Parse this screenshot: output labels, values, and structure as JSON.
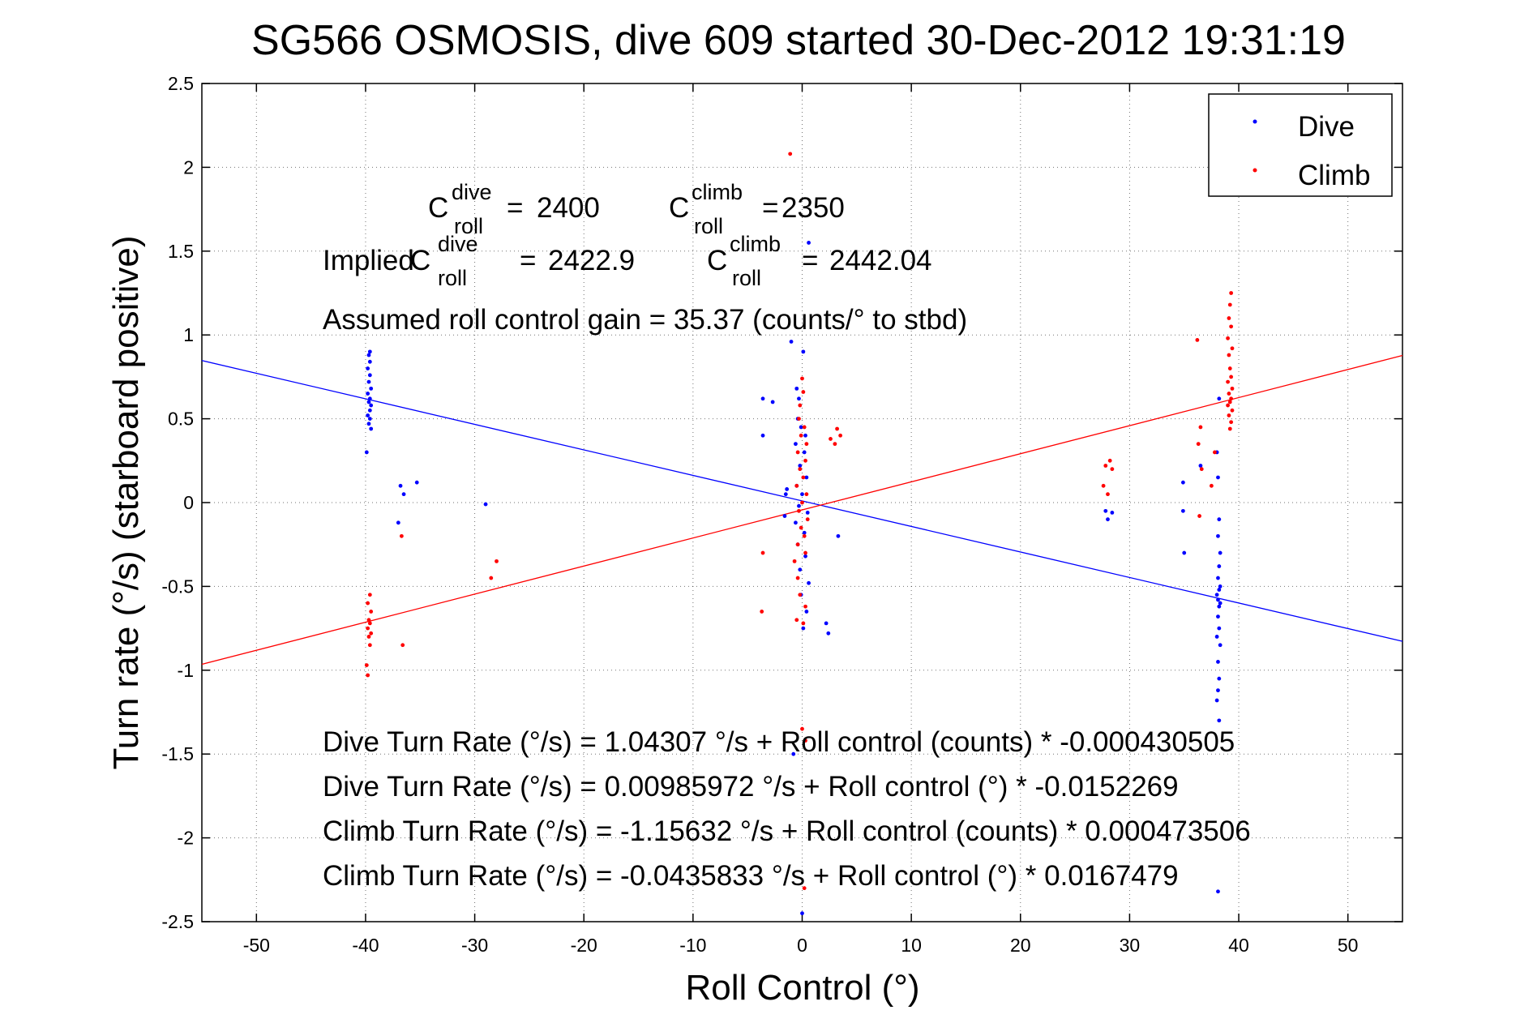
{
  "chart_data": {
    "type": "scatter",
    "title": "SG566 OSMOSIS, dive 609 started 30-Dec-2012 19:31:19",
    "xlabel": "Roll Control (°)",
    "ylabel": "Turn rate (°/s) (starboard positive)",
    "xlim": [
      -55,
      55
    ],
    "ylim": [
      -2.5,
      2.5
    ],
    "xticks": [
      -50,
      -40,
      -30,
      -20,
      -10,
      0,
      10,
      20,
      30,
      40,
      50
    ],
    "yticks": [
      2.5,
      2,
      1.5,
      1,
      0.5,
      0,
      -0.5,
      -1,
      -1.5,
      -2,
      -2.5
    ],
    "xtick_labels": [
      "-50",
      "-40",
      "-30",
      "-20",
      "-10",
      "0",
      "10",
      "20",
      "30",
      "40",
      "50"
    ],
    "ytick_labels": [
      "2.5",
      "2",
      "1.5",
      "1",
      "0.5",
      "0",
      "-0.5",
      "-1",
      "-1.5",
      "-2",
      "-2.5"
    ],
    "grid": true,
    "legend": {
      "placement": "top-right"
    },
    "series": [
      {
        "name": "Dive",
        "color": "#0000ff",
        "fit_intercept": 0.00985972,
        "fit_slope": -0.0152269,
        "points": [
          [
            -39.6,
            0.9
          ],
          [
            -39.7,
            0.88
          ],
          [
            -39.6,
            0.84
          ],
          [
            -39.8,
            0.8
          ],
          [
            -39.6,
            0.76
          ],
          [
            -39.7,
            0.72
          ],
          [
            -39.5,
            0.68
          ],
          [
            -39.8,
            0.65
          ],
          [
            -39.6,
            0.62
          ],
          [
            -39.7,
            0.6
          ],
          [
            -39.5,
            0.58
          ],
          [
            -39.6,
            0.55
          ],
          [
            -39.8,
            0.52
          ],
          [
            -39.6,
            0.5
          ],
          [
            -39.7,
            0.47
          ],
          [
            -39.5,
            0.44
          ],
          [
            -39.9,
            0.3
          ],
          [
            -36.8,
            0.1
          ],
          [
            -36.5,
            0.05
          ],
          [
            -35.3,
            0.12
          ],
          [
            -37.0,
            -0.12
          ],
          [
            -29.0,
            -0.01
          ],
          [
            -3.6,
            0.62
          ],
          [
            -2.7,
            0.6
          ],
          [
            -3.6,
            0.4
          ],
          [
            -1.6,
            -0.08
          ],
          [
            -1.5,
            0.05
          ],
          [
            -1.4,
            0.08
          ],
          [
            -1.0,
            0.96
          ],
          [
            -0.5,
            0.68
          ],
          [
            -0.3,
            0.62
          ],
          [
            0.1,
            0.9
          ],
          [
            -0.4,
            0.5
          ],
          [
            -0.1,
            0.45
          ],
          [
            0.3,
            0.4
          ],
          [
            -0.6,
            0.35
          ],
          [
            0.2,
            0.3
          ],
          [
            -0.2,
            0.22
          ],
          [
            0.4,
            0.15
          ],
          [
            -0.5,
            0.1
          ],
          [
            0.0,
            0.05
          ],
          [
            -0.3,
            -0.02
          ],
          [
            0.5,
            -0.06
          ],
          [
            -0.6,
            -0.12
          ],
          [
            0.2,
            -0.18
          ],
          [
            -0.4,
            -0.25
          ],
          [
            0.3,
            -0.32
          ],
          [
            -0.2,
            -0.4
          ],
          [
            0.6,
            -0.48
          ],
          [
            -0.1,
            -0.55
          ],
          [
            0.4,
            -0.65
          ],
          [
            0.1,
            -0.75
          ],
          [
            -0.8,
            -1.5
          ],
          [
            0.0,
            -2.45
          ],
          [
            0.6,
            1.55
          ],
          [
            3.3,
            -0.2
          ],
          [
            2.2,
            -0.72
          ],
          [
            2.4,
            -0.78
          ],
          [
            27.8,
            -0.05
          ],
          [
            28.4,
            -0.06
          ],
          [
            28.0,
            -0.1
          ],
          [
            34.9,
            0.12
          ],
          [
            34.9,
            -0.05
          ],
          [
            35.0,
            -0.3
          ],
          [
            36.5,
            0.22
          ],
          [
            38.2,
            0.62
          ],
          [
            38.0,
            0.3
          ],
          [
            38.1,
            0.15
          ],
          [
            38.2,
            -0.1
          ],
          [
            38.1,
            -0.2
          ],
          [
            38.3,
            -0.3
          ],
          [
            38.2,
            -0.38
          ],
          [
            38.1,
            -0.45
          ],
          [
            38.3,
            -0.5
          ],
          [
            38.2,
            -0.52
          ],
          [
            38.0,
            -0.55
          ],
          [
            38.1,
            -0.58
          ],
          [
            38.3,
            -0.6
          ],
          [
            38.2,
            -0.62
          ],
          [
            38.1,
            -0.68
          ],
          [
            38.2,
            -0.75
          ],
          [
            38.0,
            -0.8
          ],
          [
            38.3,
            -0.85
          ],
          [
            38.1,
            -0.95
          ],
          [
            38.2,
            -1.05
          ],
          [
            38.1,
            -1.12
          ],
          [
            38.0,
            -1.18
          ],
          [
            38.2,
            -1.3
          ],
          [
            38.1,
            -2.32
          ]
        ]
      },
      {
        "name": "Climb",
        "color": "#ff0000",
        "fit_intercept": -0.0435833,
        "fit_slope": 0.0167479,
        "points": [
          [
            -39.6,
            -0.55
          ],
          [
            -39.8,
            -0.6
          ],
          [
            -39.5,
            -0.65
          ],
          [
            -39.7,
            -0.7
          ],
          [
            -39.6,
            -0.72
          ],
          [
            -39.8,
            -0.75
          ],
          [
            -39.5,
            -0.78
          ],
          [
            -39.7,
            -0.8
          ],
          [
            -39.6,
            -0.85
          ],
          [
            -39.9,
            -0.97
          ],
          [
            -39.8,
            -1.03
          ],
          [
            -36.7,
            -0.2
          ],
          [
            -36.6,
            -0.85
          ],
          [
            -28.0,
            -0.35
          ],
          [
            -28.5,
            -0.45
          ],
          [
            -3.6,
            -0.3
          ],
          [
            -3.7,
            -0.65
          ],
          [
            -0.7,
            -0.35
          ],
          [
            -0.4,
            -0.45
          ],
          [
            -0.2,
            -0.55
          ],
          [
            0.3,
            -0.62
          ],
          [
            -0.5,
            -0.7
          ],
          [
            0.1,
            -0.72
          ],
          [
            -0.3,
            0.5
          ],
          [
            0.2,
            0.45
          ],
          [
            -0.1,
            0.4
          ],
          [
            0.4,
            0.35
          ],
          [
            -0.4,
            0.3
          ],
          [
            0.3,
            0.25
          ],
          [
            -0.2,
            0.2
          ],
          [
            0.1,
            0.15
          ],
          [
            -0.5,
            0.1
          ],
          [
            0.4,
            0.05
          ],
          [
            0.0,
            0.0
          ],
          [
            -0.3,
            -0.05
          ],
          [
            0.5,
            -0.1
          ],
          [
            -0.1,
            -0.15
          ],
          [
            0.2,
            -0.2
          ],
          [
            -0.4,
            -0.25
          ],
          [
            0.3,
            -0.3
          ],
          [
            0.0,
            0.74
          ],
          [
            0.1,
            0.66
          ],
          [
            -0.2,
            0.58
          ],
          [
            -1.1,
            2.08
          ],
          [
            0.0,
            -1.35
          ],
          [
            0.3,
            -1.42
          ],
          [
            0.2,
            -2.3
          ],
          [
            2.6,
            0.38
          ],
          [
            3.2,
            0.44
          ],
          [
            3.5,
            0.4
          ],
          [
            3.0,
            0.35
          ],
          [
            27.8,
            0.22
          ],
          [
            28.2,
            0.25
          ],
          [
            28.4,
            0.2
          ],
          [
            27.6,
            0.1
          ],
          [
            28.0,
            0.05
          ],
          [
            36.2,
            0.97
          ],
          [
            36.5,
            0.45
          ],
          [
            36.3,
            0.35
          ],
          [
            36.6,
            0.2
          ],
          [
            36.4,
            -0.08
          ],
          [
            39.3,
            1.25
          ],
          [
            39.2,
            1.18
          ],
          [
            39.1,
            1.1
          ],
          [
            39.3,
            1.05
          ],
          [
            39.0,
            0.98
          ],
          [
            39.4,
            0.92
          ],
          [
            39.1,
            0.88
          ],
          [
            39.2,
            0.8
          ],
          [
            39.3,
            0.75
          ],
          [
            39.0,
            0.72
          ],
          [
            39.4,
            0.68
          ],
          [
            39.1,
            0.65
          ],
          [
            39.3,
            0.62
          ],
          [
            39.2,
            0.6
          ],
          [
            39.0,
            0.58
          ],
          [
            39.4,
            0.55
          ],
          [
            39.1,
            0.52
          ],
          [
            39.3,
            0.48
          ],
          [
            39.2,
            0.44
          ],
          [
            37.8,
            0.3
          ],
          [
            37.5,
            0.1
          ]
        ]
      }
    ],
    "annotations": {
      "croll_dive_value": "2400",
      "croll_climb_value": "2350",
      "implied_prefix": "Implied",
      "implied_dive_value": "2422.9",
      "implied_climb_value": "2442.04",
      "c_letter": "C",
      "sup_dive": "dive",
      "sup_climb": "climb",
      "sub_roll": "roll",
      "eq_sign": "=",
      "gain_text": "Assumed roll control gain = 35.37 (counts/° to stbd)",
      "eq1": "Dive Turn Rate (°/s) = 1.04307 °/s + Roll control (counts) * -0.000430505",
      "eq2": "Dive Turn Rate (°/s) = 0.00985972 °/s + Roll control (°) * -0.0152269",
      "eq3": "Climb Turn Rate (°/s) = -1.15632 °/s + Roll control (counts) * 0.000473506",
      "eq4": "Climb Turn Rate (°/s) = -0.0435833 °/s + Roll control (°) * 0.0167479"
    }
  }
}
